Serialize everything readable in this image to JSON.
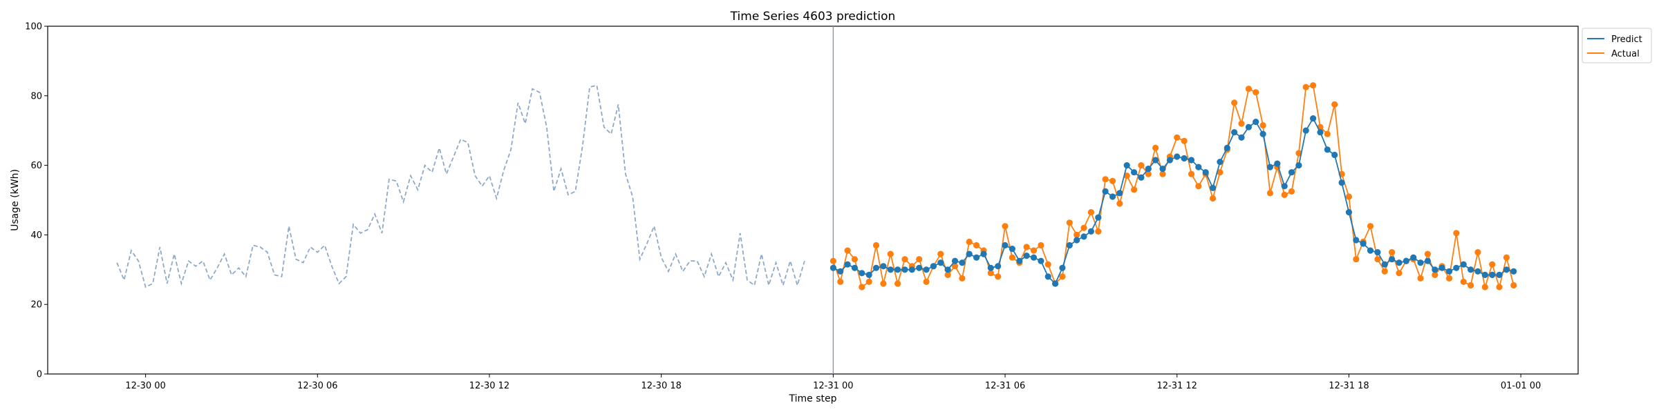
{
  "chart_data": {
    "type": "line",
    "title": "Time Series 4603 prediction",
    "xlabel": "Time step",
    "ylabel": "Usage (kWh)",
    "ylim": [
      0,
      100
    ],
    "yticks": [
      0,
      20,
      40,
      60,
      80,
      100
    ],
    "xlim": [
      "2024-12-29 20:35",
      "2025-01-01 02:00"
    ],
    "xticks": [
      {
        "t": "2024-12-30 00:00",
        "label": "12-30 00"
      },
      {
        "t": "2024-12-30 06:00",
        "label": "12-30 06"
      },
      {
        "t": "2024-12-30 12:00",
        "label": "12-30 12"
      },
      {
        "t": "2024-12-30 18:00",
        "label": "12-30 18"
      },
      {
        "t": "2024-12-31 00:00",
        "label": "12-31 00"
      },
      {
        "t": "2024-12-31 06:00",
        "label": "12-31 06"
      },
      {
        "t": "2024-12-31 12:00",
        "label": "12-31 12"
      },
      {
        "t": "2024-12-31 18:00",
        "label": "12-31 18"
      },
      {
        "t": "2025-01-01 00:00",
        "label": "01-01 00"
      }
    ],
    "x_start": "2024-12-29 23:00",
    "x_step_minutes": 15,
    "forecast_start": "2024-12-31 00:00",
    "legend_position": "outside-top-right",
    "grid": false,
    "series": [
      {
        "role": "history",
        "color": "#8ea8c8",
        "style": "dashed",
        "values": [
          32.0,
          27.0,
          35.5,
          32.5,
          25.0,
          26.0,
          36.5,
          26.0,
          34.5,
          26.0,
          32.5,
          31.0,
          32.5,
          27.0,
          30.5,
          34.5,
          28.5,
          30.5,
          28.0,
          37.0,
          36.5,
          35.0,
          28.5,
          28.0,
          42.5,
          33.0,
          32.0,
          36.5,
          35.0,
          37.0,
          31.0,
          26.0,
          28.0,
          43.0,
          40.5,
          41.5,
          46.0,
          40.5,
          56.0,
          55.5,
          49.5,
          57.0,
          53.0,
          60.0,
          58.0,
          65.0,
          57.5,
          62.5,
          67.5,
          66.5,
          57.0,
          54.0,
          57.0,
          50.5,
          58.5,
          64.5,
          78.0,
          72.0,
          82.0,
          81.0,
          71.0,
          52.5,
          59.0,
          51.5,
          52.5,
          65.5,
          82.5,
          83.0,
          71.0,
          69.0,
          77.5,
          57.5,
          51.0,
          33.0,
          37.5,
          42.5,
          33.5,
          29.5,
          34.5,
          29.5,
          32.5,
          32.5,
          28.0,
          34.5,
          28.0,
          32.0,
          27.0,
          40.5,
          27.0,
          25.5,
          34.5,
          25.5,
          32.0,
          25.5,
          32.5,
          25.5,
          32.5
        ]
      },
      {
        "name": "Predict",
        "role": "forecast",
        "color": "#1f77b4",
        "style": "solid",
        "values": [
          30.5,
          29.5,
          31.5,
          30.5,
          29.0,
          28.5,
          30.5,
          31.0,
          30.0,
          30.0,
          30.0,
          30.0,
          30.5,
          30.0,
          31.0,
          32.0,
          30.0,
          32.5,
          32.0,
          34.5,
          33.5,
          34.5,
          30.5,
          31.0,
          37.0,
          36.0,
          32.5,
          34.0,
          33.5,
          32.5,
          28.0,
          26.0,
          30.5,
          37.0,
          38.5,
          39.5,
          41.0,
          45.0,
          52.5,
          51.0,
          52.0,
          60.0,
          58.0,
          56.5,
          59.0,
          61.5,
          59.0,
          61.5,
          62.5,
          62.0,
          61.5,
          59.5,
          58.0,
          53.5,
          61.0,
          65.0,
          69.5,
          68.0,
          71.0,
          72.5,
          69.0,
          59.5,
          60.5,
          54.0,
          58.0,
          60.0,
          70.0,
          73.5,
          69.5,
          64.5,
          63.0,
          55.0,
          46.5,
          38.5,
          37.5,
          35.5,
          35.0,
          31.5,
          33.0,
          32.0,
          32.5,
          33.5,
          32.0,
          32.5,
          30.0,
          30.5,
          29.5,
          30.5,
          31.5,
          30.0,
          29.5,
          28.5,
          28.5,
          28.5,
          30.0,
          29.5
        ]
      },
      {
        "name": "Actual",
        "role": "actual",
        "color": "#ff7f0e",
        "style": "solid",
        "values": [
          32.5,
          26.5,
          35.5,
          33.0,
          25.0,
          26.5,
          37.0,
          26.0,
          34.5,
          26.0,
          33.0,
          31.0,
          33.0,
          26.5,
          31.0,
          34.5,
          28.5,
          31.0,
          27.5,
          38.0,
          37.0,
          35.5,
          29.0,
          28.0,
          42.5,
          33.5,
          32.0,
          36.5,
          35.5,
          37.0,
          31.5,
          26.0,
          28.0,
          43.5,
          40.0,
          42.0,
          46.5,
          41.0,
          56.0,
          55.5,
          49.0,
          57.0,
          53.0,
          60.0,
          57.5,
          65.0,
          57.5,
          62.5,
          68.0,
          67.0,
          57.5,
          54.0,
          57.5,
          50.5,
          58.0,
          64.5,
          78.0,
          72.0,
          82.0,
          81.0,
          71.5,
          52.0,
          59.5,
          51.5,
          52.5,
          63.5,
          82.5,
          83.0,
          71.0,
          69.0,
          77.5,
          57.5,
          51.0,
          33.0,
          38.0,
          42.5,
          33.0,
          29.5,
          35.0,
          29.0,
          32.5,
          33.0,
          27.5,
          34.5,
          28.5,
          31.0,
          27.5,
          40.5,
          26.5,
          25.5,
          35.0,
          25.0,
          31.5,
          25.0,
          33.5,
          25.5
        ]
      }
    ]
  }
}
